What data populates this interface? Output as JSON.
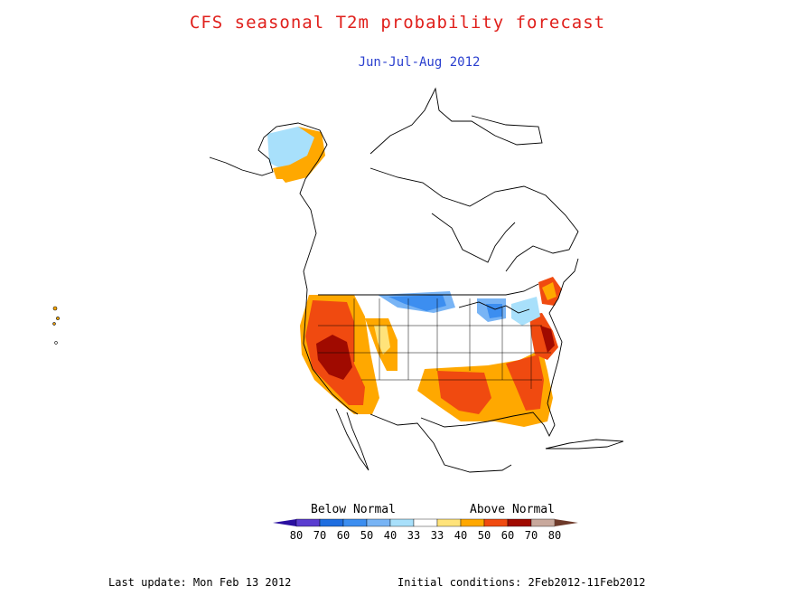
{
  "title": "CFS seasonal T2m probability forecast",
  "subtitle": "Jun-Jul-Aug 2012",
  "legend": {
    "below_label": "Below Normal",
    "above_label": "Above Normal",
    "tick_labels": [
      "80",
      "70",
      "60",
      "50",
      "40",
      "33",
      "33",
      "40",
      "50",
      "60",
      "70",
      "80"
    ],
    "colors": [
      "#2a0fa0",
      "#5a3cd0",
      "#1f6ee0",
      "#3c8ef0",
      "#78b4f5",
      "#a8e0fb",
      "#ffffff",
      "#ffe37a",
      "#ffa800",
      "#f04a10",
      "#a00a00",
      "#c8a89c",
      "#6e3a2a"
    ]
  },
  "last_update": "Last update: Mon Feb 13 2012",
  "initial_conditions": "Initial conditions: 2Feb2012-11Feb2012",
  "map": {
    "region": "North America",
    "variable": "2m temperature probability"
  }
}
